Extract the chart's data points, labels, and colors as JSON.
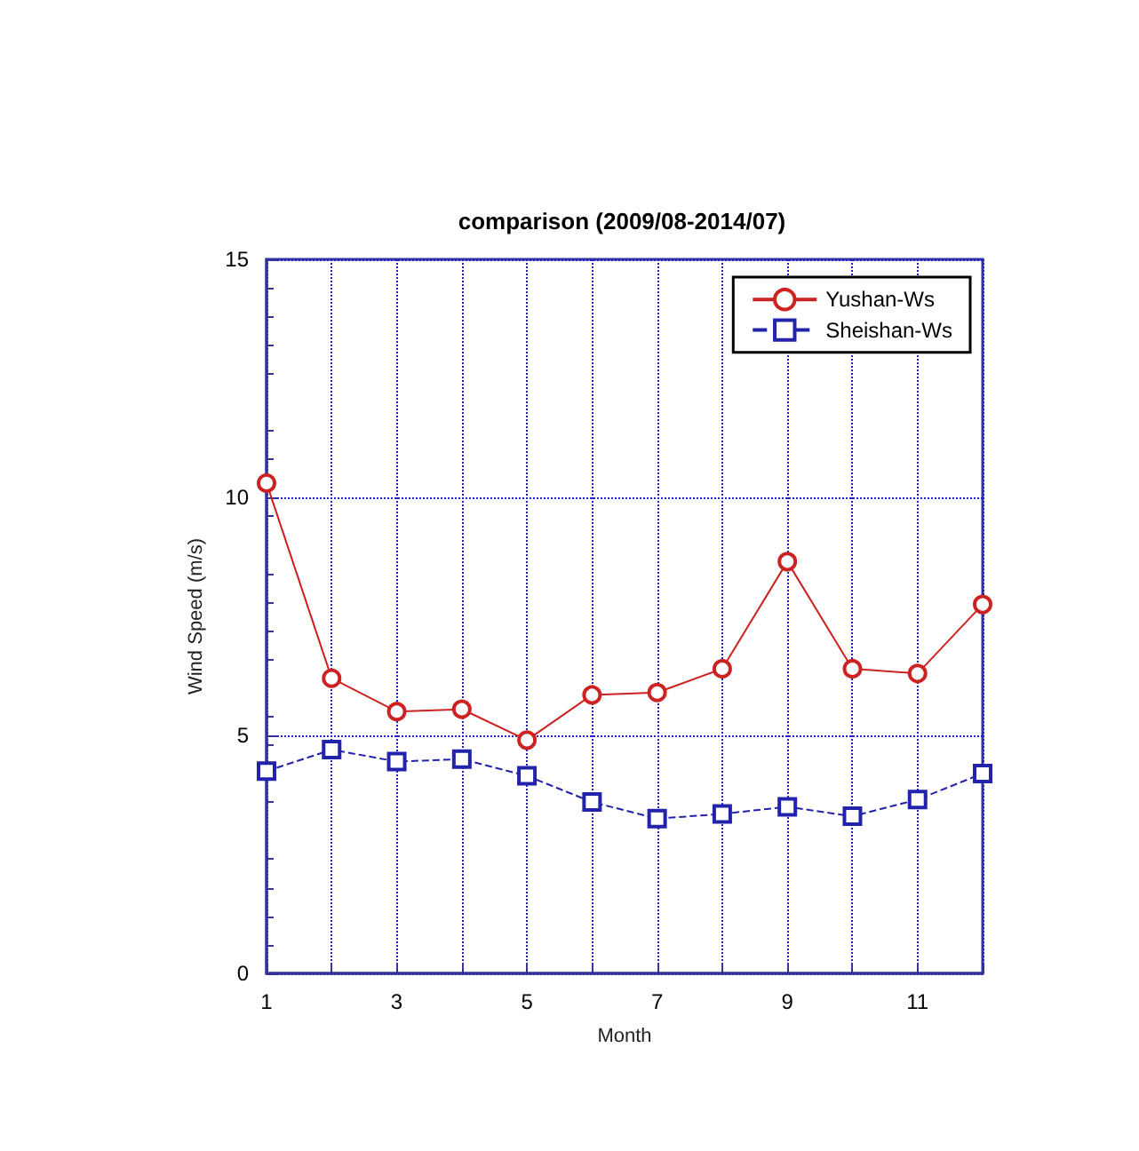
{
  "chart_data": {
    "type": "line",
    "title": "comparison (2009/08-2014/07)",
    "xlabel": "Month",
    "ylabel": "Wind Speed (m/s)",
    "xlim": [
      1,
      12
    ],
    "xticks": [
      1,
      {
        "value": 2,
        "label": null
      },
      3,
      {
        "value": 4,
        "label": null
      },
      5,
      {
        "value": 6,
        "label": null
      },
      7,
      {
        "value": 8,
        "label": null
      },
      9,
      {
        "value": 10,
        "label": null
      },
      11,
      {
        "value": 12,
        "label": null
      }
    ],
    "ylim": [
      0,
      15
    ],
    "yticks": [
      0,
      5,
      10,
      15
    ],
    "grid": true,
    "legend": "top right",
    "x": [
      1,
      2,
      3,
      4,
      5,
      6,
      7,
      8,
      9,
      10,
      11,
      12
    ],
    "series": [
      {
        "name": "Yushan-Ws",
        "color": "#cc2222",
        "marker": "circle",
        "line_style": "solid",
        "values": [
          10.3,
          6.2,
          5.5,
          5.55,
          4.9,
          5.85,
          5.9,
          6.4,
          8.65,
          6.4,
          6.3,
          7.75
        ]
      },
      {
        "name": "Sheishan-Ws",
        "color": "#2222aa",
        "marker": "square",
        "line_style": "dashed",
        "values": [
          4.25,
          4.7,
          4.45,
          4.5,
          4.15,
          3.6,
          3.25,
          3.35,
          3.5,
          3.3,
          3.65,
          4.2
        ]
      }
    ]
  }
}
